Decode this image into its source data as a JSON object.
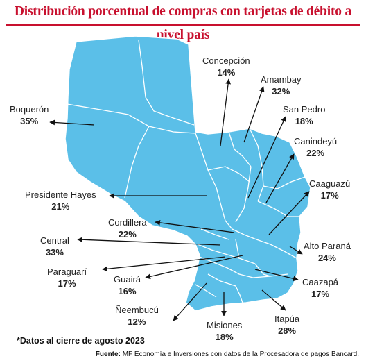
{
  "title": "Distribución porcentual de compras con tarjetas de débito a nivel país",
  "regions": [
    {
      "name": "Concepción",
      "value": "14%"
    },
    {
      "name": "Amambay",
      "value": "32%"
    },
    {
      "name": "San Pedro",
      "value": "18%"
    },
    {
      "name": "Canindeyú",
      "value": "22%"
    },
    {
      "name": "Caaguazú",
      "value": "17%"
    },
    {
      "name": "Alto Paraná",
      "value": "24%"
    },
    {
      "name": "Caazapá",
      "value": "17%"
    },
    {
      "name": "Itapúa",
      "value": "28%"
    },
    {
      "name": "Misiones",
      "value": "18%"
    },
    {
      "name": "Ñeembucú",
      "value": "12%"
    },
    {
      "name": "Guairá",
      "value": "16%"
    },
    {
      "name": "Paraguarí",
      "value": "17%"
    },
    {
      "name": "Central",
      "value": "33%"
    },
    {
      "name": "Cordillera",
      "value": "22%"
    },
    {
      "name": "Presidente Hayes",
      "value": "21%"
    },
    {
      "name": "Boquerón",
      "value": "35%"
    }
  ],
  "note": "*Datos al cierre de agosto 2023",
  "source_label": "Fuente:",
  "source_text": "MF Economía e Inversiones con datos de la Procesadora de pagos Bancard.",
  "colors": {
    "land": "#5bbfe8",
    "border": "#ffffff",
    "title": "#c8102e",
    "arrow": "#111111"
  }
}
